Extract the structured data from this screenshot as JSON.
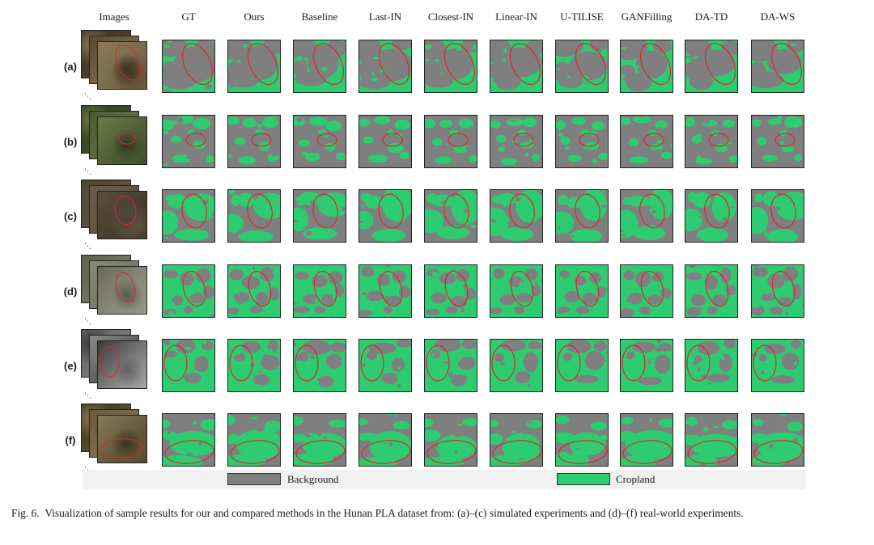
{
  "figure": {
    "column_headers": [
      "Images",
      "GT",
      "Ours",
      "Baseline",
      "Last-IN",
      "Closest-IN",
      "Linear-IN",
      "U-TILISE",
      "GANFilling",
      "DA-TD",
      "DA-WS"
    ],
    "row_labels": [
      "(a)",
      "(b)",
      "(c)",
      "(d)",
      "(e)",
      "(f)"
    ],
    "legend": [
      {
        "label": "Background",
        "color": "#7f7f7f"
      },
      {
        "label": "Cropland",
        "color": "#2ecc71"
      }
    ],
    "colors": {
      "background_class": "#7f7f7f",
      "cropland_class": "#2ecc71",
      "highlight_ellipse": "#d42a2a",
      "legend_bar": "#f1f1f1"
    },
    "icons": [
      "image-stack",
      "map-tile",
      "red-ellipse"
    ]
  },
  "caption": {
    "label": "Fig. 6.",
    "text": "Visualization of sample results for our and compared methods in the Hunan PLA dataset from: (a)–(c) simulated experiments and (d)–(f) real-world experiments."
  }
}
